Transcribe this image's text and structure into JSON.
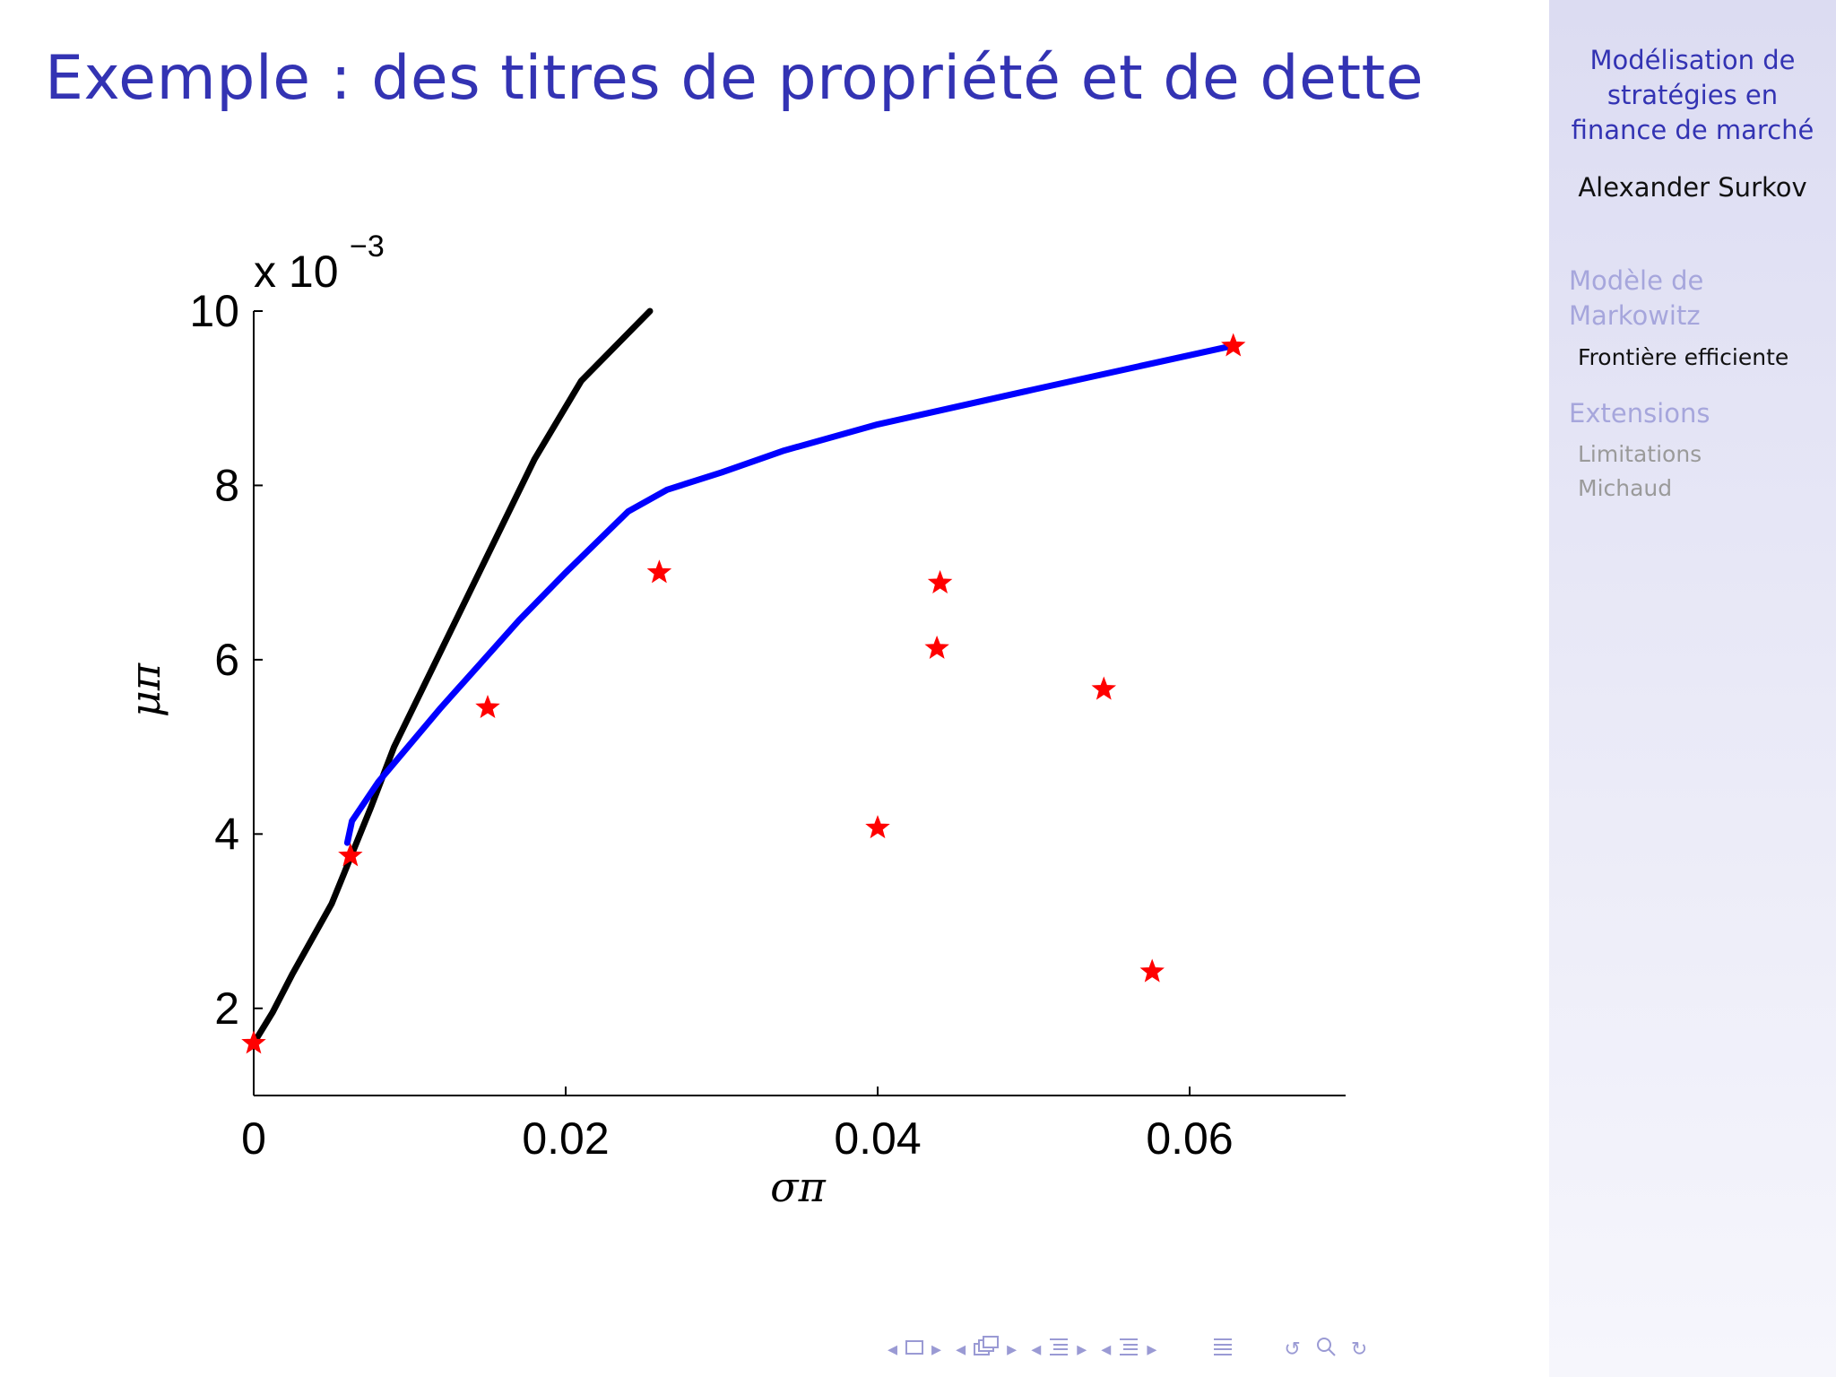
{
  "slide": {
    "title": "Exemple : des titres de propriété et de dette"
  },
  "sidebar": {
    "talk_title_lines": [
      "Modélisation de",
      "stratégies en",
      "finance de marché"
    ],
    "author": "Alexander Surkov",
    "sections": [
      {
        "label_lines": [
          "Modèle de",
          "Markowitz"
        ],
        "subsections": [
          "Frontière efficiente"
        ]
      },
      {
        "label_lines": [
          "Extensions"
        ],
        "subsections": [
          "Limitations",
          "Michaud"
        ]
      }
    ],
    "active_subsection": "Frontière efficiente"
  },
  "colors": {
    "title": "#3333b3",
    "frontier": "#0000ff",
    "tangent_line": "#000000",
    "assets": "#ff0000"
  },
  "chart_data": {
    "type": "line",
    "xlabel": "σπ",
    "ylabel": "μπ",
    "y_multiplier_label": "x 10",
    "y_multiplier_exponent": "−3",
    "xlim": [
      0,
      0.07
    ],
    "ylim": [
      1.0,
      10.0
    ],
    "x_ticks": [
      {
        "value": 0,
        "label": "0"
      },
      {
        "value": 0.02,
        "label": "0.02"
      },
      {
        "value": 0.04,
        "label": "0.04"
      },
      {
        "value": 0.06,
        "label": "0.06"
      }
    ],
    "y_ticks": [
      {
        "value": 2,
        "label": "2"
      },
      {
        "value": 4,
        "label": "4"
      },
      {
        "value": 6,
        "label": "6"
      },
      {
        "value": 8,
        "label": "8"
      },
      {
        "value": 10,
        "label": "10"
      }
    ],
    "series": [
      {
        "kind": "line",
        "color": "#000000",
        "points": [
          [
            0.0,
            1.6
          ],
          [
            0.0012,
            1.95
          ],
          [
            0.0025,
            2.4
          ],
          [
            0.005,
            3.2
          ],
          [
            0.0075,
            4.3
          ],
          [
            0.009,
            5.0
          ],
          [
            0.012,
            6.1
          ],
          [
            0.015,
            7.2
          ],
          [
            0.018,
            8.3
          ],
          [
            0.021,
            9.2
          ],
          [
            0.0254,
            10.0
          ]
        ]
      },
      {
        "kind": "line",
        "color": "#0000ff",
        "points": [
          [
            0.006,
            3.9
          ],
          [
            0.0063,
            4.15
          ],
          [
            0.008,
            4.6
          ],
          [
            0.012,
            5.45
          ],
          [
            0.0145,
            5.95
          ],
          [
            0.017,
            6.45
          ],
          [
            0.02,
            7.0
          ],
          [
            0.024,
            7.7
          ],
          [
            0.0265,
            7.95
          ],
          [
            0.03,
            8.15
          ],
          [
            0.034,
            8.4
          ],
          [
            0.04,
            8.7
          ],
          [
            0.05,
            9.1
          ],
          [
            0.0627,
            9.6
          ]
        ]
      },
      {
        "kind": "scatter",
        "marker": "star",
        "color": "#ff0000",
        "points": [
          [
            0.0,
            1.6
          ],
          [
            0.0062,
            3.75
          ],
          [
            0.015,
            5.45
          ],
          [
            0.026,
            7.0
          ],
          [
            0.04,
            4.07
          ],
          [
            0.0438,
            6.13
          ],
          [
            0.044,
            6.88
          ],
          [
            0.0545,
            5.66
          ],
          [
            0.0576,
            2.42
          ],
          [
            0.0628,
            9.6
          ]
        ]
      }
    ],
    "grid": false,
    "legend": "none"
  },
  "navigation": {
    "icons": [
      "arrow-left-icon",
      "frame-icon",
      "arrow-right-icon",
      "arrow-left-icon",
      "subsection-icon",
      "arrow-right-icon",
      "arrow-left-icon",
      "section-icon",
      "arrow-right-icon",
      "arrow-left-icon",
      "section-icon",
      "arrow-right-icon",
      "align-icon",
      "back-icon",
      "search-icon",
      "forward-icon"
    ]
  }
}
